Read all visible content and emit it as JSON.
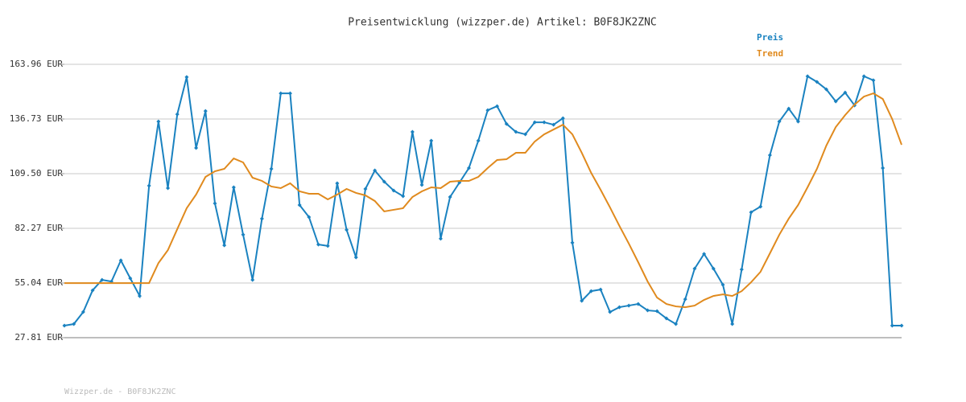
{
  "chart_data": {
    "type": "line",
    "title": "Preisentwicklung (wizzper.de) Artikel: B0F8JK2ZNC",
    "footer": "Wizzper.de - B0F8JK2ZNC",
    "ylim": [
      27.81,
      163.96
    ],
    "yticks": [
      {
        "value": 27.81,
        "label": "27.81 EUR"
      },
      {
        "value": 55.04,
        "label": "55.04 EUR"
      },
      {
        "value": 82.27,
        "label": "82.27 EUR"
      },
      {
        "value": 109.5,
        "label": "109.50 EUR"
      },
      {
        "value": 136.73,
        "label": "136.73 EUR"
      },
      {
        "value": 163.96,
        "label": "163.96 EUR"
      }
    ],
    "grid": true,
    "legend": "top-right",
    "series": [
      {
        "name": "Preis",
        "color": "#1a82c0",
        "markers": true,
        "values": [
          33.8,
          34.6,
          40.6,
          51.4,
          56.6,
          55.8,
          66.3,
          57.4,
          48.6,
          103.5,
          135.5,
          102.3,
          139.1,
          157.6,
          122.3,
          140.7,
          94.7,
          73.8,
          102.7,
          79.1,
          56.6,
          87.1,
          111.9,
          149.5,
          149.5,
          93.9,
          87.9,
          74.2,
          73.5,
          104.7,
          81.5,
          67.8,
          101.9,
          111.1,
          105.5,
          101.1,
          98.3,
          130.3,
          103.9,
          125.9,
          77.1,
          97.9,
          105.1,
          112.3,
          125.9,
          141.1,
          143.1,
          134.3,
          130.3,
          129.1,
          135.1,
          135.1,
          133.9,
          137.1,
          75.1,
          46.2,
          51.0,
          51.8,
          40.6,
          43.0,
          43.8,
          44.6,
          41.4,
          41.0,
          37.4,
          34.6,
          47.0,
          62.2,
          69.5,
          62.2,
          54.2,
          34.6,
          61.8,
          90.3,
          93.1,
          118.7,
          135.5,
          141.9,
          135.5,
          158.0,
          155.2,
          151.5,
          145.5,
          149.9,
          143.5,
          158.0,
          156.0,
          112.3,
          33.8,
          33.8
        ]
      },
      {
        "name": "Trend",
        "color": "#e08a1e",
        "markers": false,
        "values": [
          55.0,
          55.0,
          55.0,
          55.0,
          55.0,
          55.0,
          55.0,
          55.0,
          55.0,
          55.0,
          65.0,
          71.4,
          81.9,
          92.3,
          99.1,
          107.9,
          110.7,
          111.9,
          117.1,
          115.1,
          107.5,
          105.9,
          103.1,
          102.3,
          104.7,
          100.7,
          99.5,
          99.5,
          96.7,
          99.1,
          101.9,
          99.9,
          98.7,
          95.9,
          90.7,
          91.5,
          92.3,
          97.9,
          100.7,
          102.7,
          102.3,
          105.5,
          105.9,
          105.9,
          107.9,
          112.3,
          116.3,
          116.7,
          119.9,
          119.9,
          125.5,
          129.1,
          131.5,
          133.9,
          129.1,
          119.9,
          109.9,
          101.5,
          92.7,
          83.5,
          74.7,
          65.4,
          55.8,
          47.8,
          44.6,
          43.4,
          43.0,
          43.8,
          46.6,
          48.6,
          49.4,
          48.6,
          51.0,
          55.4,
          60.6,
          69.8,
          79.1,
          87.1,
          93.9,
          102.7,
          111.9,
          123.5,
          132.7,
          138.7,
          143.9,
          147.9,
          149.5,
          146.7,
          136.7,
          123.9
        ]
      }
    ]
  }
}
